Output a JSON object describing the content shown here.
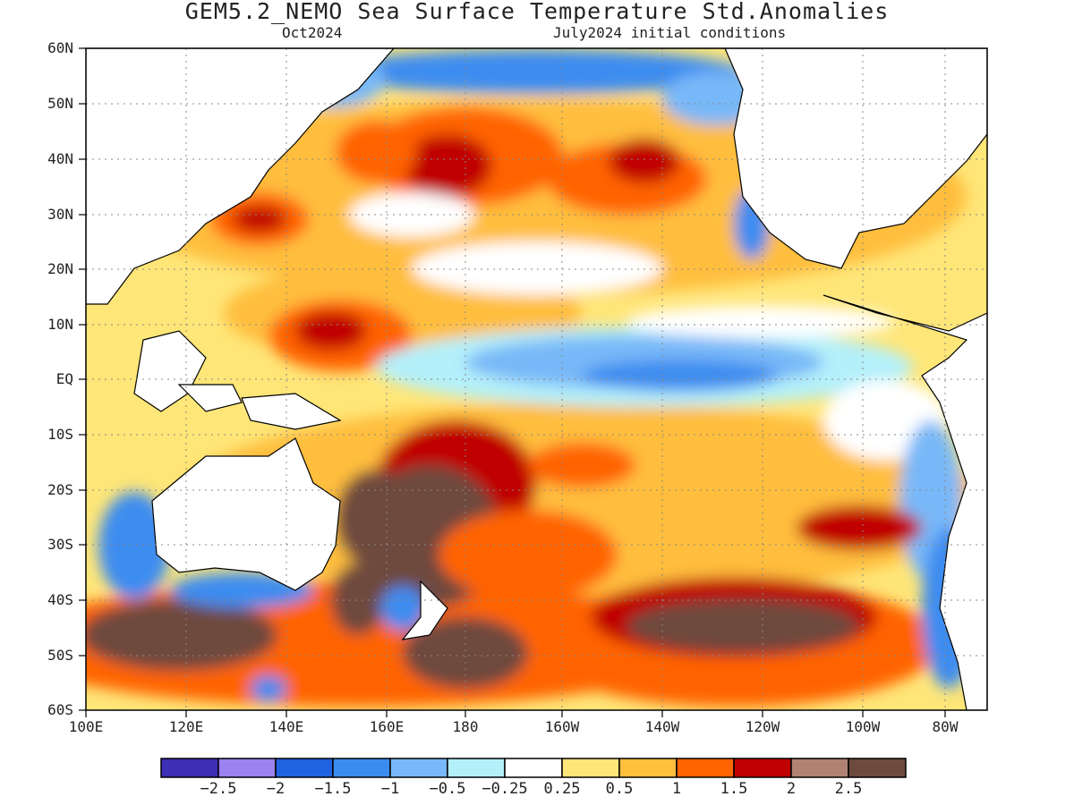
{
  "title": "GEM5.2_NEMO Sea Surface Temperature Std.Anomalies",
  "subtitle_left": "Oct2024",
  "subtitle_right": "July2024 initial conditions",
  "y_labels": [
    "60N",
    "50N",
    "40N",
    "30N",
    "20N",
    "10N",
    "EQ",
    "10S",
    "20S",
    "30S",
    "40S",
    "50S",
    "60S"
  ],
  "x_labels": [
    "100E",
    "120E",
    "140E",
    "160E",
    "180",
    "160W",
    "140W",
    "120W",
    "100W",
    "80W"
  ],
  "colorbar": {
    "colors": [
      "#3c2fb4",
      "#9a82f0",
      "#1f63e0",
      "#3c8cf0",
      "#78b8f8",
      "#b4f0fa",
      "#ffffff",
      "#ffe678",
      "#ffbe3c",
      "#ff6400",
      "#c00000",
      "#b08274",
      "#6e4a3e"
    ],
    "labels": [
      "-2.5",
      "-2",
      "-1.5",
      "-1",
      "-0.5",
      "-0.25",
      "0.25",
      "0.5",
      "1",
      "1.5",
      "2",
      "2.5"
    ]
  }
}
